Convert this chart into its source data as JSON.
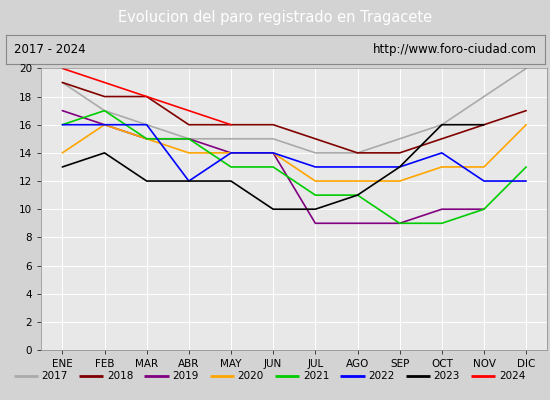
{
  "title": "Evolucion del paro registrado en Tragacete",
  "subtitle_left": "2017 - 2024",
  "subtitle_right": "http://www.foro-ciudad.com",
  "months": [
    "ENE",
    "FEB",
    "MAR",
    "ABR",
    "MAY",
    "JUN",
    "JUL",
    "AGO",
    "SEP",
    "OCT",
    "NOV",
    "DIC"
  ],
  "series": {
    "2017": {
      "color": "#aaaaaa",
      "data": [
        19,
        17,
        16,
        15,
        15,
        15,
        14,
        14,
        15,
        16,
        18,
        20
      ]
    },
    "2018": {
      "color": "#800000",
      "data": [
        19,
        18,
        18,
        16,
        16,
        16,
        15,
        14,
        14,
        15,
        16,
        17
      ]
    },
    "2019": {
      "color": "#800080",
      "data": [
        17,
        16,
        15,
        15,
        14,
        14,
        9,
        9,
        9,
        10,
        10,
        null
      ]
    },
    "2020": {
      "color": "#ffa500",
      "data": [
        14,
        16,
        15,
        14,
        14,
        14,
        12,
        12,
        12,
        13,
        13,
        16
      ]
    },
    "2021": {
      "color": "#00cc00",
      "data": [
        16,
        17,
        15,
        15,
        13,
        13,
        11,
        11,
        9,
        9,
        10,
        13
      ]
    },
    "2022": {
      "color": "#0000ff",
      "data": [
        16,
        16,
        16,
        12,
        14,
        14,
        13,
        13,
        13,
        14,
        12,
        12
      ]
    },
    "2023": {
      "color": "#000000",
      "data": [
        13,
        14,
        12,
        12,
        12,
        10,
        10,
        11,
        13,
        16,
        16,
        null
      ]
    },
    "2024": {
      "color": "#ff0000",
      "data": [
        20,
        null,
        null,
        null,
        16,
        null,
        null,
        null,
        null,
        null,
        null,
        null
      ]
    }
  },
  "ylim": [
    0,
    20
  ],
  "yticks": [
    0,
    2,
    4,
    6,
    8,
    10,
    12,
    14,
    16,
    18,
    20
  ],
  "background_color": "#d3d3d3",
  "plot_bg_color": "#e8e8e8",
  "title_bg_color": "#4472c4",
  "title_color": "#ffffff",
  "grid_color": "#ffffff",
  "subtitle_border_color": "#888888"
}
